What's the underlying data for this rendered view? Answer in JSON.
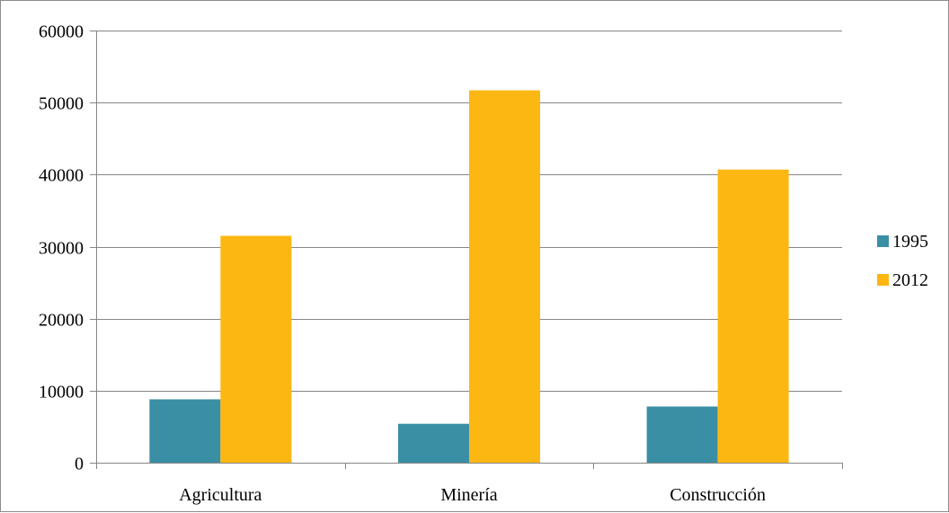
{
  "chart_data": {
    "type": "bar",
    "categories": [
      "Agricultura",
      "Minería",
      "Construcción"
    ],
    "series": [
      {
        "name": "1995",
        "values": [
          8800,
          5400,
          7800
        ],
        "color": "#3A8FA5"
      },
      {
        "name": "2012",
        "values": [
          31500,
          51700,
          40700
        ],
        "color": "#FDB713"
      }
    ],
    "ylim": [
      0,
      60000
    ],
    "yticks": [
      "0",
      "10000",
      "20000",
      "30000",
      "40000",
      "50000",
      "60000"
    ],
    "grid": true,
    "legend": "right",
    "gridline_color": "#868686",
    "axis_color": "#868686"
  }
}
